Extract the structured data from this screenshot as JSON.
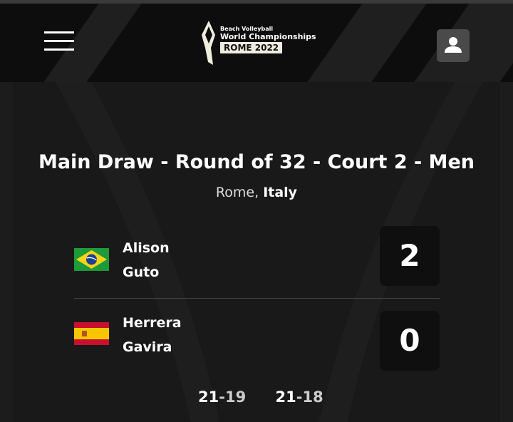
{
  "header": {
    "logo": {
      "line1": "Beach Volleyball",
      "line2": "World Championships",
      "line3": "ROME 2022"
    }
  },
  "match": {
    "title": "Main Draw - Round of 32 - Court 2 - Men",
    "city": "Rome,",
    "country": "Italy"
  },
  "teams": [
    {
      "country": "Brazil",
      "players": [
        "Alison",
        "Guto"
      ],
      "score": "2"
    },
    {
      "country": "Spain",
      "players": [
        "Herrera",
        "Gavira"
      ],
      "score": "0"
    }
  ],
  "sets": [
    {
      "a": "21",
      "b": "19"
    },
    {
      "a": "21",
      "b": "18"
    }
  ],
  "colors": {
    "background": "#1c1c1c",
    "header": "#0d0d0d"
  }
}
